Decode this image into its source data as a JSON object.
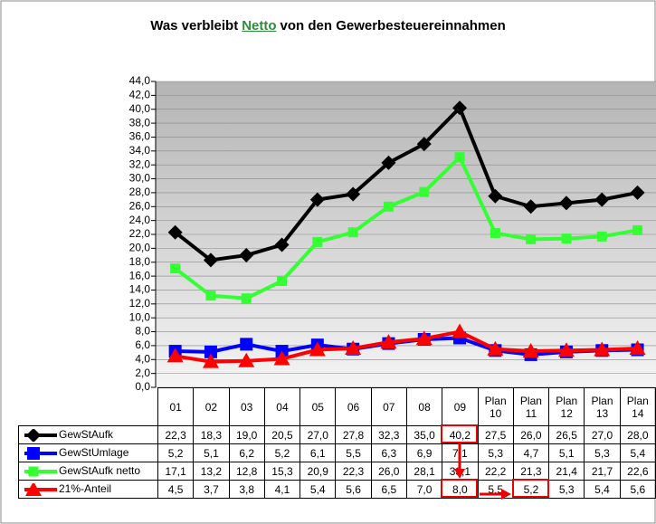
{
  "chart_data": {
    "type": "line",
    "title_parts": [
      "Was verbleibt",
      "Netto",
      "von den Gewerbesteuereinnahmen"
    ],
    "categories": [
      "01",
      "02",
      "03",
      "04",
      "05",
      "06",
      "07",
      "08",
      "09",
      "Plan 10",
      "Plan 11",
      "Plan 12",
      "Plan 13",
      "Plan 14"
    ],
    "series": [
      {
        "name": "GewStAufk",
        "color": "#000000",
        "marker": "diamond",
        "values": [
          22.3,
          18.3,
          19.0,
          20.5,
          27.0,
          27.8,
          32.3,
          35.0,
          40.2,
          27.5,
          26.0,
          26.5,
          27.0,
          28.0
        ],
        "value_labels": [
          "22,3",
          "18,3",
          "19,0",
          "20,5",
          "27,0",
          "27,8",
          "32,3",
          "35,0",
          "40,2",
          "27,5",
          "26,0",
          "26,5",
          "27,0",
          "28,0"
        ]
      },
      {
        "name": "GewStUmlage",
        "color": "#0000ff",
        "marker": "square",
        "values": [
          5.2,
          5.1,
          6.2,
          5.2,
          6.1,
          5.5,
          6.3,
          6.9,
          7.1,
          5.3,
          4.7,
          5.1,
          5.3,
          5.4
        ],
        "value_labels": [
          "5,2",
          "5,1",
          "6,2",
          "5,2",
          "6,1",
          "5,5",
          "6,3",
          "6,9",
          "7,1",
          "5,3",
          "4,7",
          "5,1",
          "5,3",
          "5,4"
        ]
      },
      {
        "name": "GewStAufk netto",
        "color": "#33ff33",
        "marker": "small-square",
        "values": [
          17.1,
          13.2,
          12.8,
          15.3,
          20.9,
          22.3,
          26.0,
          28.1,
          33.1,
          22.2,
          21.3,
          21.4,
          21.7,
          22.6
        ],
        "value_labels": [
          "17,1",
          "13,2",
          "12,8",
          "15,3",
          "20,9",
          "22,3",
          "26,0",
          "28,1",
          "33,1",
          "22,2",
          "21,3",
          "21,4",
          "21,7",
          "22,6"
        ]
      },
      {
        "name": "21%-Anteil",
        "color": "#ff0000",
        "marker": "triangle",
        "values": [
          4.5,
          3.7,
          3.8,
          4.1,
          5.4,
          5.6,
          6.5,
          7.0,
          8.0,
          5.5,
          5.2,
          5.3,
          5.4,
          5.6
        ],
        "value_labels": [
          "4,5",
          "3,7",
          "3,8",
          "4,1",
          "5,4",
          "5,6",
          "6,5",
          "7,0",
          "8,0",
          "5,5",
          "5,2",
          "5,3",
          "5,4",
          "5,6"
        ]
      }
    ],
    "ylim": [
      0,
      44
    ],
    "yticks": [
      {
        "value": 0,
        "label": "0,0"
      },
      {
        "value": 2,
        "label": "2,0"
      },
      {
        "value": 4,
        "label": "4,0"
      },
      {
        "value": 6,
        "label": "6,0"
      },
      {
        "value": 8,
        "label": "8,0"
      },
      {
        "value": 10,
        "label": "10,0"
      },
      {
        "value": 12,
        "label": "12,0"
      },
      {
        "value": 14,
        "label": "14,0"
      },
      {
        "value": 16,
        "label": "16,0"
      },
      {
        "value": 18,
        "label": "18,0"
      },
      {
        "value": 20,
        "label": "20,0"
      },
      {
        "value": 22,
        "label": "22,0"
      },
      {
        "value": 24,
        "label": "24,0"
      },
      {
        "value": 26,
        "label": "26,0"
      },
      {
        "value": 28,
        "label": "28,0"
      },
      {
        "value": 30,
        "label": "30,0"
      },
      {
        "value": 32,
        "label": "32,0"
      },
      {
        "value": 34,
        "label": "34,0"
      },
      {
        "value": 36,
        "label": "36,0"
      },
      {
        "value": 38,
        "label": "38,0"
      },
      {
        "value": 40,
        "label": "40,0"
      },
      {
        "value": 42,
        "label": "42,0"
      },
      {
        "value": 44,
        "label": "44,0"
      }
    ],
    "grid": true
  }
}
